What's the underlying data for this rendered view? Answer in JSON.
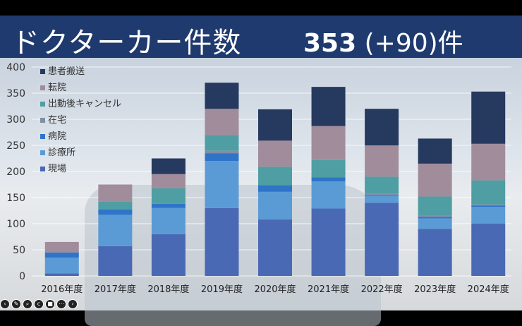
{
  "header": {
    "title": "ドクターカー件数",
    "total": "353",
    "delta": "(+90)件"
  },
  "controls": [
    "prev-icon",
    "pen-icon",
    "zoom-icon",
    "cc-icon",
    "stop-icon",
    "more-icon",
    "next-icon"
  ],
  "chart_data": {
    "type": "bar",
    "stacked": true,
    "categories": [
      "2016年度",
      "2017年度",
      "2018年度",
      "2019年度",
      "2020年度",
      "2021年度",
      "2022年度",
      "2023年度",
      "2024年度"
    ],
    "ylim": [
      0,
      400
    ],
    "yticks": [
      0,
      50,
      100,
      150,
      200,
      250,
      300,
      350,
      400
    ],
    "grid": true,
    "legend_position": "top-left",
    "series": [
      {
        "name": "現場",
        "color": "#4a69b4",
        "values": [
          5,
          57,
          80,
          130,
          108,
          129,
          140,
          90,
          100
        ]
      },
      {
        "name": "診療所",
        "color": "#5b9bd5",
        "values": [
          30,
          60,
          50,
          90,
          53,
          52,
          13,
          20,
          32
        ]
      },
      {
        "name": "病院",
        "color": "#2e75c9",
        "values": [
          10,
          10,
          8,
          15,
          13,
          8,
          2,
          3,
          3
        ]
      },
      {
        "name": "在宅",
        "color": "#7f8fa6",
        "values": [
          0,
          0,
          0,
          5,
          0,
          0,
          3,
          2,
          2
        ]
      },
      {
        "name": "出動後キャンセル",
        "color": "#4f9ea3",
        "values": [
          0,
          15,
          30,
          30,
          35,
          33,
          32,
          37,
          46
        ]
      },
      {
        "name": "転院",
        "color": "#a18c9c",
        "values": [
          20,
          33,
          27,
          50,
          50,
          65,
          60,
          63,
          70
        ]
      },
      {
        "name": "患者搬送",
        "color": "#26395f",
        "values": [
          0,
          0,
          30,
          50,
          60,
          75,
          70,
          48,
          100
        ]
      }
    ]
  }
}
